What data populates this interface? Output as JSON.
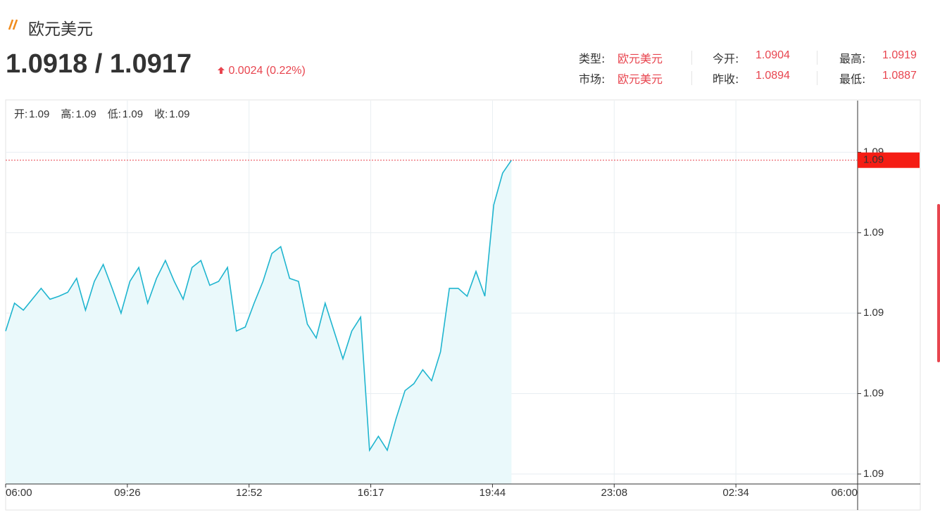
{
  "header": {
    "title": "欧元美元",
    "price": "1.0918 / 1.0917",
    "change": "0.0024 (0.22%)"
  },
  "stats": [
    [
      {
        "label": "类型:",
        "value": "欧元美元"
      },
      {
        "label": "今开:",
        "value": "1.0904"
      },
      {
        "label": "最高:",
        "value": "1.0919"
      }
    ],
    [
      {
        "label": "市场:",
        "value": "欧元美元"
      },
      {
        "label": "昨收:",
        "value": "1.0894"
      },
      {
        "label": "最低:",
        "value": "1.0887"
      }
    ]
  ],
  "ohlc": [
    {
      "label": "开:",
      "value": "1.09"
    },
    {
      "label": "高:",
      "value": "1.09"
    },
    {
      "label": "低:",
      "value": "1.09"
    },
    {
      "label": "收:",
      "value": "1.09"
    }
  ],
  "chart_data": {
    "type": "line",
    "color": "#1fb5cf",
    "area_color": "#eaf9fb",
    "values": [
      1.09008,
      1.09036,
      1.09029,
      1.0904,
      1.09051,
      1.0904,
      1.09043,
      1.09047,
      1.09061,
      1.09029,
      1.09058,
      1.09075,
      1.09051,
      1.09026,
      1.09058,
      1.09072,
      1.09036,
      1.09061,
      1.09079,
      1.09058,
      1.0904,
      1.09072,
      1.09079,
      1.09054,
      1.09058,
      1.09072,
      1.09008,
      1.09012,
      1.09036,
      1.09058,
      1.09086,
      1.09093,
      1.09061,
      1.09058,
      1.09015,
      1.09001,
      1.09036,
      1.09008,
      1.0898,
      1.09008,
      1.09022,
      1.08888,
      1.08902,
      1.08888,
      1.0892,
      1.08948,
      1.08955,
      1.08969,
      1.08958,
      1.08987,
      1.09051,
      1.09051,
      1.09043,
      1.09068,
      1.09043,
      1.09135,
      1.09167,
      1.0918,
      null,
      null,
      null,
      null,
      null,
      null,
      null,
      null,
      null,
      null,
      null,
      null,
      null,
      null,
      null,
      null,
      null,
      null,
      null,
      null,
      null,
      null,
      null,
      null,
      null,
      null,
      null,
      null,
      null,
      null,
      null,
      null,
      null,
      null,
      null,
      null,
      null,
      null,
      null
    ],
    "x_labels": [
      "06:00",
      "09:26",
      "12:52",
      "16:17",
      "19:44",
      "23:08",
      "02:34",
      "06:00"
    ],
    "ylim": [
      1.08854,
      1.0924
    ],
    "yticks": [
      {
        "value": 1.08864,
        "label": "1.09"
      },
      {
        "value": 1.08945,
        "label": "1.09"
      },
      {
        "value": 1.09026,
        "label": "1.09"
      },
      {
        "value": 1.09107,
        "label": "1.09"
      },
      {
        "value": 1.09188,
        "label": "1.09"
      }
    ],
    "last_price": {
      "value": 1.0918,
      "label": "1.09"
    },
    "grid": true
  }
}
